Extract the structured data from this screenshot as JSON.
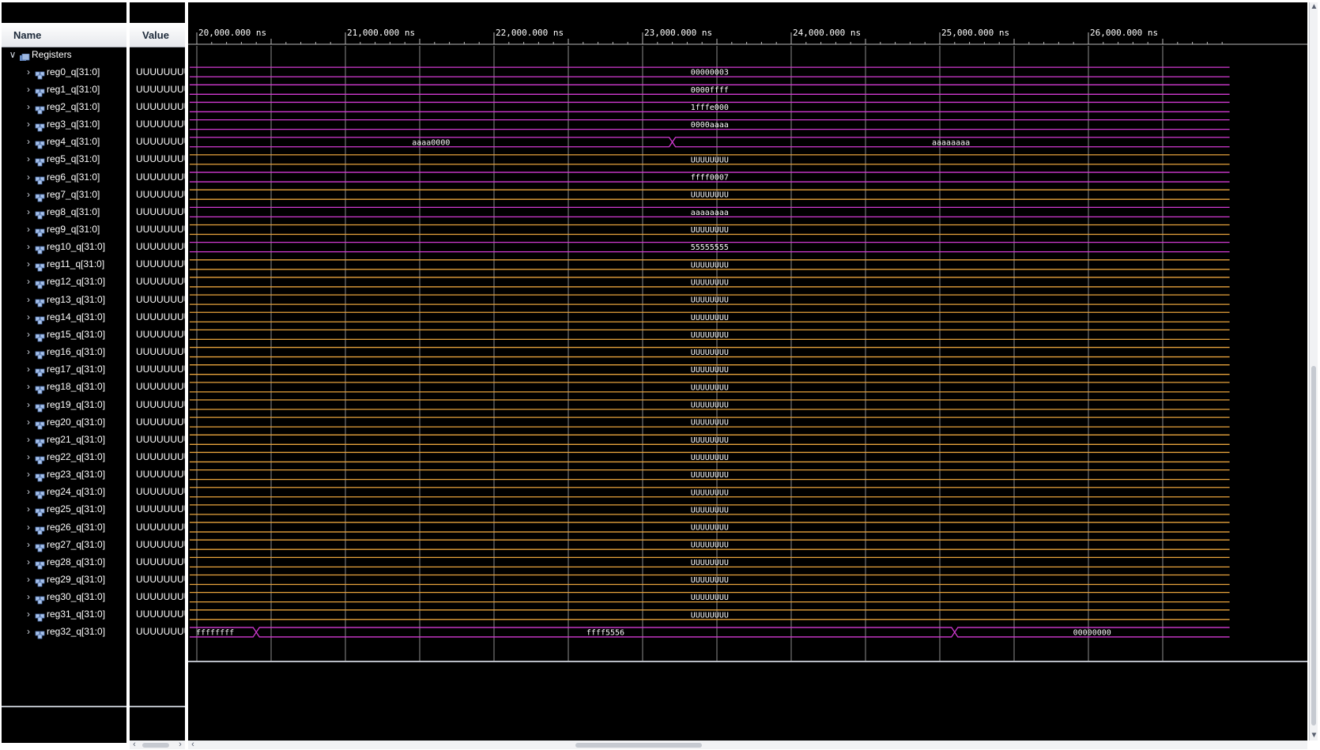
{
  "columns": {
    "name": "Name",
    "value": "Value"
  },
  "group": {
    "label": "Registers"
  },
  "timeline": {
    "unit": "ns",
    "start_ns": 19900,
    "end_ns": 26950,
    "major_ticks": [
      {
        "t": 20000,
        "label": "20,000.000 ns"
      },
      {
        "t": 21000,
        "label": "21,000.000 ns"
      },
      {
        "t": 22000,
        "label": "22,000.000 ns"
      },
      {
        "t": 23000,
        "label": "23,000.000 ns"
      },
      {
        "t": 24000,
        "label": "24,000.000 ns"
      },
      {
        "t": 25000,
        "label": "25,000.000 ns"
      },
      {
        "t": 26000,
        "label": "26,000.000 ns"
      }
    ]
  },
  "colors": {
    "defined": "#d23ad2",
    "undefined": "#e8a33c",
    "grid": "#b9b9b9",
    "text": "#ffffff"
  },
  "signals": [
    {
      "name": "reg0_q[31:0]",
      "value": "UUUUUUUU",
      "segments": [
        {
          "from": 19900,
          "to": 26950,
          "text": "00000003",
          "state": "defined"
        }
      ]
    },
    {
      "name": "reg1_q[31:0]",
      "value": "UUUUUUUU",
      "segments": [
        {
          "from": 19900,
          "to": 26950,
          "text": "0000ffff",
          "state": "defined"
        }
      ]
    },
    {
      "name": "reg2_q[31:0]",
      "value": "UUUUUUUU",
      "segments": [
        {
          "from": 19900,
          "to": 26950,
          "text": "1fffe000",
          "state": "defined"
        }
      ]
    },
    {
      "name": "reg3_q[31:0]",
      "value": "UUUUUUUU",
      "segments": [
        {
          "from": 19900,
          "to": 26950,
          "text": "0000aaaa",
          "state": "defined"
        }
      ]
    },
    {
      "name": "reg4_q[31:0]",
      "value": "UUUUUUUU",
      "segments": [
        {
          "from": 19900,
          "to": 23200,
          "text": "aaaa0000",
          "state": "defined"
        },
        {
          "from": 23200,
          "to": 26950,
          "text": "aaaaaaaa",
          "state": "defined"
        }
      ]
    },
    {
      "name": "reg5_q[31:0]",
      "value": "UUUUUUUU",
      "segments": [
        {
          "from": 19900,
          "to": 26950,
          "text": "UUUUUUUU",
          "state": "undefined"
        }
      ]
    },
    {
      "name": "reg6_q[31:0]",
      "value": "UUUUUUUU",
      "segments": [
        {
          "from": 19900,
          "to": 26950,
          "text": "ffff0007",
          "state": "defined"
        }
      ]
    },
    {
      "name": "reg7_q[31:0]",
      "value": "UUUUUUUU",
      "segments": [
        {
          "from": 19900,
          "to": 26950,
          "text": "UUUUUUUU",
          "state": "undefined"
        }
      ]
    },
    {
      "name": "reg8_q[31:0]",
      "value": "UUUUUUUU",
      "segments": [
        {
          "from": 19900,
          "to": 26950,
          "text": "aaaaaaaa",
          "state": "defined"
        }
      ]
    },
    {
      "name": "reg9_q[31:0]",
      "value": "UUUUUUUU",
      "segments": [
        {
          "from": 19900,
          "to": 26950,
          "text": "UUUUUUUU",
          "state": "undefined"
        }
      ]
    },
    {
      "name": "reg10_q[31:0]",
      "value": "UUUUUUUU",
      "segments": [
        {
          "from": 19900,
          "to": 26950,
          "text": "55555555",
          "state": "defined"
        }
      ]
    },
    {
      "name": "reg11_q[31:0]",
      "value": "UUUUUUUU",
      "segments": [
        {
          "from": 19900,
          "to": 26950,
          "text": "UUUUUUUU",
          "state": "undefined"
        }
      ]
    },
    {
      "name": "reg12_q[31:0]",
      "value": "UUUUUUUU",
      "segments": [
        {
          "from": 19900,
          "to": 26950,
          "text": "UUUUUUUU",
          "state": "undefined"
        }
      ]
    },
    {
      "name": "reg13_q[31:0]",
      "value": "UUUUUUUU",
      "segments": [
        {
          "from": 19900,
          "to": 26950,
          "text": "UUUUUUUU",
          "state": "undefined"
        }
      ]
    },
    {
      "name": "reg14_q[31:0]",
      "value": "UUUUUUUU",
      "segments": [
        {
          "from": 19900,
          "to": 26950,
          "text": "UUUUUUUU",
          "state": "undefined"
        }
      ]
    },
    {
      "name": "reg15_q[31:0]",
      "value": "UUUUUUUU",
      "segments": [
        {
          "from": 19900,
          "to": 26950,
          "text": "UUUUUUUU",
          "state": "undefined"
        }
      ]
    },
    {
      "name": "reg16_q[31:0]",
      "value": "UUUUUUUU",
      "segments": [
        {
          "from": 19900,
          "to": 26950,
          "text": "UUUUUUUU",
          "state": "undefined"
        }
      ]
    },
    {
      "name": "reg17_q[31:0]",
      "value": "UUUUUUUU",
      "segments": [
        {
          "from": 19900,
          "to": 26950,
          "text": "UUUUUUUU",
          "state": "undefined"
        }
      ]
    },
    {
      "name": "reg18_q[31:0]",
      "value": "UUUUUUUU",
      "segments": [
        {
          "from": 19900,
          "to": 26950,
          "text": "UUUUUUUU",
          "state": "undefined"
        }
      ]
    },
    {
      "name": "reg19_q[31:0]",
      "value": "UUUUUUUU",
      "segments": [
        {
          "from": 19900,
          "to": 26950,
          "text": "UUUUUUUU",
          "state": "undefined"
        }
      ]
    },
    {
      "name": "reg20_q[31:0]",
      "value": "UUUUUUUU",
      "segments": [
        {
          "from": 19900,
          "to": 26950,
          "text": "UUUUUUUU",
          "state": "undefined"
        }
      ]
    },
    {
      "name": "reg21_q[31:0]",
      "value": "UUUUUUUU",
      "segments": [
        {
          "from": 19900,
          "to": 26950,
          "text": "UUUUUUUU",
          "state": "undefined"
        }
      ]
    },
    {
      "name": "reg22_q[31:0]",
      "value": "UUUUUUUU",
      "segments": [
        {
          "from": 19900,
          "to": 26950,
          "text": "UUUUUUUU",
          "state": "undefined"
        }
      ]
    },
    {
      "name": "reg23_q[31:0]",
      "value": "UUUUUUUU",
      "segments": [
        {
          "from": 19900,
          "to": 26950,
          "text": "UUUUUUUU",
          "state": "undefined"
        }
      ]
    },
    {
      "name": "reg24_q[31:0]",
      "value": "UUUUUUUU",
      "segments": [
        {
          "from": 19900,
          "to": 26950,
          "text": "UUUUUUUU",
          "state": "undefined"
        }
      ]
    },
    {
      "name": "reg25_q[31:0]",
      "value": "UUUUUUUU",
      "segments": [
        {
          "from": 19900,
          "to": 26950,
          "text": "UUUUUUUU",
          "state": "undefined"
        }
      ]
    },
    {
      "name": "reg26_q[31:0]",
      "value": "UUUUUUUU",
      "segments": [
        {
          "from": 19900,
          "to": 26950,
          "text": "UUUUUUUU",
          "state": "undefined"
        }
      ]
    },
    {
      "name": "reg27_q[31:0]",
      "value": "UUUUUUUU",
      "segments": [
        {
          "from": 19900,
          "to": 26950,
          "text": "UUUUUUUU",
          "state": "undefined"
        }
      ]
    },
    {
      "name": "reg28_q[31:0]",
      "value": "UUUUUUUU",
      "segments": [
        {
          "from": 19900,
          "to": 26950,
          "text": "UUUUUUUU",
          "state": "undefined"
        }
      ]
    },
    {
      "name": "reg29_q[31:0]",
      "value": "UUUUUUUU",
      "segments": [
        {
          "from": 19900,
          "to": 26950,
          "text": "UUUUUUUU",
          "state": "undefined"
        }
      ]
    },
    {
      "name": "reg30_q[31:0]",
      "value": "UUUUUUUU",
      "segments": [
        {
          "from": 19900,
          "to": 26950,
          "text": "UUUUUUUU",
          "state": "undefined"
        }
      ]
    },
    {
      "name": "reg31_q[31:0]",
      "value": "UUUUUUUU",
      "segments": [
        {
          "from": 19900,
          "to": 26950,
          "text": "UUUUUUUU",
          "state": "undefined"
        }
      ]
    },
    {
      "name": "reg32_q[31:0]",
      "value": "UUUUUUUU",
      "segments": [
        {
          "from": 19900,
          "to": 20400,
          "text": "ffffffff",
          "state": "defined"
        },
        {
          "from": 20400,
          "to": 25100,
          "text": "ffff5556",
          "state": "defined"
        },
        {
          "from": 25100,
          "to": 26950,
          "text": "00000000",
          "state": "defined"
        }
      ]
    }
  ]
}
